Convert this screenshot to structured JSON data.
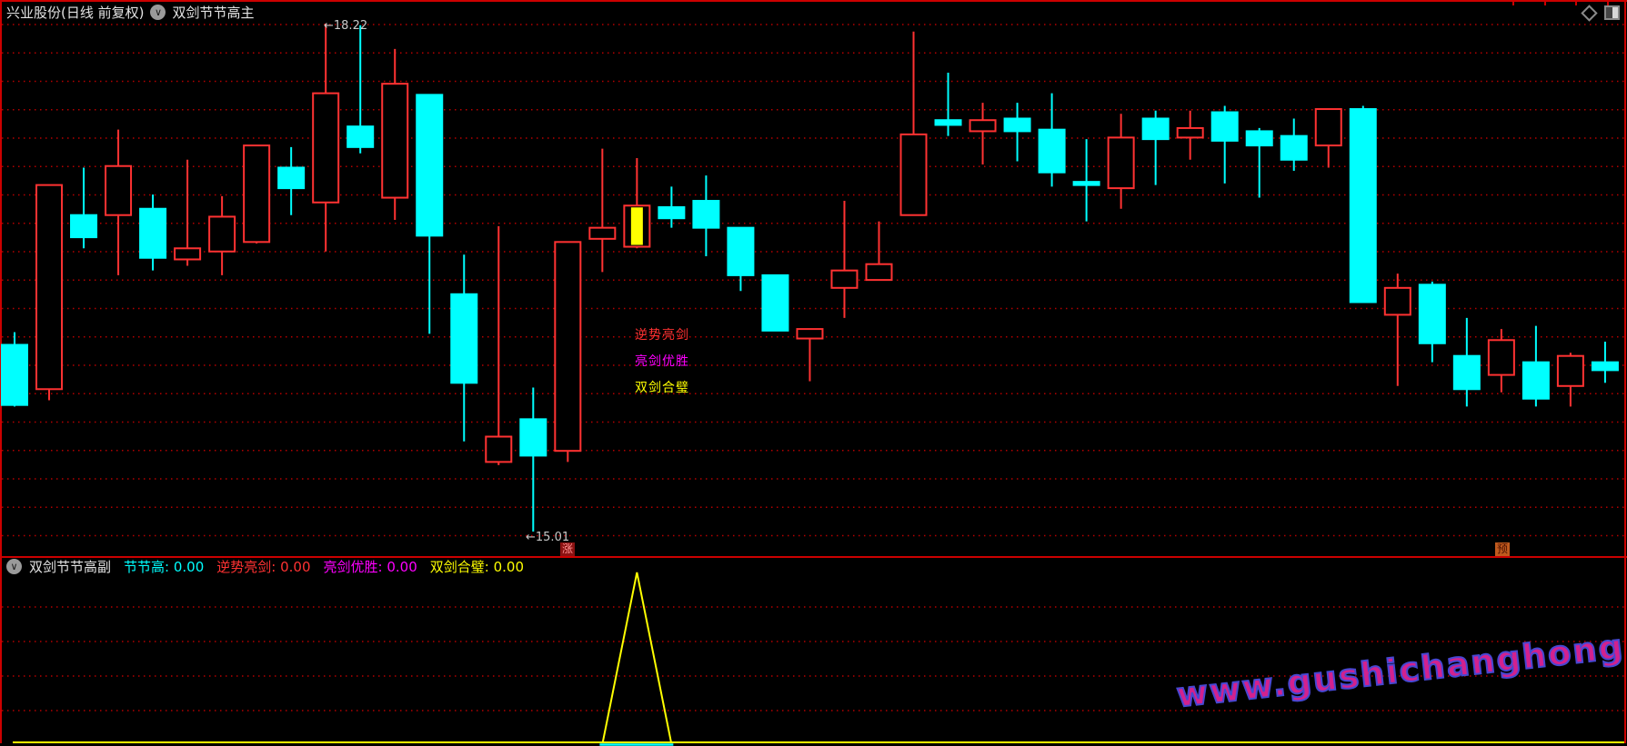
{
  "window": {
    "title_stock": "兴业股份(日线 前复权)",
    "title_main_indicator": "双剑节节高主",
    "chevron_glyph": "∨"
  },
  "main_chart": {
    "high_label": "←18.22",
    "low_label": "←15.01",
    "signal_labels": [
      {
        "text": "逆势亮剑",
        "color": "#ff3232"
      },
      {
        "text": "亮剑优胜",
        "color": "#ff00ff"
      },
      {
        "text": "双剑合璧",
        "color": "#ffff00"
      }
    ],
    "badges": [
      {
        "text": "涨",
        "color": "#ff8f8f",
        "bg": "#8b1212"
      },
      {
        "text": "预",
        "color": "#4a1000",
        "bg": "#c05a1e"
      }
    ]
  },
  "sub_chart": {
    "title": "双剑节节高副",
    "fields": [
      {
        "label": "节节高:",
        "value": "0.00",
        "color": "#00ffff"
      },
      {
        "label": "逆势亮剑:",
        "value": "0.00",
        "color": "#ff3232"
      },
      {
        "label": "亮剑优胜:",
        "value": "0.00",
        "color": "#ff00ff"
      },
      {
        "label": "双剑合璧:",
        "value": "0.00",
        "color": "#ffff00"
      }
    ]
  },
  "watermark": "www.gushichanghong.com",
  "colors": {
    "up": "#ff3232",
    "down": "#00ffff",
    "signal_fill": "#ffff00",
    "grid": "#b40000",
    "frame": "#cc0000",
    "text": "#e2e2e2",
    "label_gray": "#c8c8c8",
    "magenta": "#ff00ff",
    "yellow": "#ffff00",
    "watermark_fill": "#d2218e",
    "watermark_stroke": "#4747d2"
  },
  "chart_data": {
    "type": "candlestick",
    "title": "兴业股份(日线 前复权)",
    "y_axis": {
      "visible_high": 18.22,
      "visible_low": 15.01
    },
    "grid": "horizontal-dotted-red",
    "candles": [
      {
        "o": 16.19,
        "h": 16.27,
        "l": 15.8,
        "c": 15.81,
        "dir": "down"
      },
      {
        "o": 15.91,
        "h": 17.2,
        "l": 15.84,
        "c": 17.2,
        "dir": "up"
      },
      {
        "o": 17.01,
        "h": 17.31,
        "l": 16.8,
        "c": 16.87,
        "dir": "down"
      },
      {
        "o": 17.01,
        "h": 17.55,
        "l": 16.63,
        "c": 17.32,
        "dir": "up"
      },
      {
        "o": 17.05,
        "h": 17.14,
        "l": 16.66,
        "c": 16.74,
        "dir": "down"
      },
      {
        "o": 16.73,
        "h": 17.36,
        "l": 16.69,
        "c": 16.8,
        "dir": "up"
      },
      {
        "o": 16.78,
        "h": 17.13,
        "l": 16.63,
        "c": 17.0,
        "dir": "up"
      },
      {
        "o": 16.84,
        "h": 17.45,
        "l": 16.83,
        "c": 17.45,
        "dir": "up"
      },
      {
        "o": 17.31,
        "h": 17.44,
        "l": 17.01,
        "c": 17.18,
        "dir": "down"
      },
      {
        "o": 17.09,
        "h": 18.22,
        "l": 16.78,
        "c": 17.78,
        "dir": "up"
      },
      {
        "o": 17.57,
        "h": 18.21,
        "l": 17.4,
        "c": 17.44,
        "dir": "down"
      },
      {
        "o": 17.12,
        "h": 18.06,
        "l": 16.98,
        "c": 17.84,
        "dir": "up"
      },
      {
        "o": 17.77,
        "h": 17.77,
        "l": 16.26,
        "c": 16.88,
        "dir": "down"
      },
      {
        "o": 16.51,
        "h": 16.76,
        "l": 15.58,
        "c": 15.95,
        "dir": "down"
      },
      {
        "o": 15.45,
        "h": 16.94,
        "l": 15.43,
        "c": 15.61,
        "dir": "up"
      },
      {
        "o": 15.72,
        "h": 15.92,
        "l": 15.01,
        "c": 15.49,
        "dir": "down"
      },
      {
        "o": 15.52,
        "h": 16.84,
        "l": 15.45,
        "c": 16.84,
        "dir": "up"
      },
      {
        "o": 16.86,
        "h": 17.43,
        "l": 16.65,
        "c": 16.93,
        "dir": "up"
      },
      {
        "o": 16.81,
        "h": 17.37,
        "l": 16.8,
        "c": 17.07,
        "dir": "signal"
      },
      {
        "o": 17.06,
        "h": 17.19,
        "l": 16.93,
        "c": 16.99,
        "dir": "down"
      },
      {
        "o": 17.1,
        "h": 17.26,
        "l": 16.75,
        "c": 16.93,
        "dir": "down"
      },
      {
        "o": 16.93,
        "h": 16.93,
        "l": 16.53,
        "c": 16.63,
        "dir": "down"
      },
      {
        "o": 16.63,
        "h": 16.63,
        "l": 16.28,
        "c": 16.28,
        "dir": "down"
      },
      {
        "o": 16.23,
        "h": 16.29,
        "l": 15.96,
        "c": 16.29,
        "dir": "up"
      },
      {
        "o": 16.55,
        "h": 17.1,
        "l": 16.36,
        "c": 16.66,
        "dir": "up"
      },
      {
        "o": 16.6,
        "h": 16.97,
        "l": 16.6,
        "c": 16.7,
        "dir": "up"
      },
      {
        "o": 17.01,
        "h": 18.17,
        "l": 17.01,
        "c": 17.52,
        "dir": "up"
      },
      {
        "o": 17.61,
        "h": 17.91,
        "l": 17.51,
        "c": 17.58,
        "dir": "down"
      },
      {
        "o": 17.54,
        "h": 17.72,
        "l": 17.33,
        "c": 17.61,
        "dir": "up"
      },
      {
        "o": 17.62,
        "h": 17.72,
        "l": 17.35,
        "c": 17.54,
        "dir": "down"
      },
      {
        "o": 17.55,
        "h": 17.78,
        "l": 17.19,
        "c": 17.28,
        "dir": "down"
      },
      {
        "o": 17.22,
        "h": 17.49,
        "l": 16.97,
        "c": 17.2,
        "dir": "down"
      },
      {
        "o": 17.18,
        "h": 17.65,
        "l": 17.05,
        "c": 17.5,
        "dir": "up"
      },
      {
        "o": 17.62,
        "h": 17.67,
        "l": 17.2,
        "c": 17.49,
        "dir": "down"
      },
      {
        "o": 17.5,
        "h": 17.67,
        "l": 17.36,
        "c": 17.56,
        "dir": "up"
      },
      {
        "o": 17.66,
        "h": 17.7,
        "l": 17.21,
        "c": 17.48,
        "dir": "down"
      },
      {
        "o": 17.54,
        "h": 17.56,
        "l": 17.12,
        "c": 17.45,
        "dir": "down"
      },
      {
        "o": 17.51,
        "h": 17.62,
        "l": 17.29,
        "c": 17.36,
        "dir": "down"
      },
      {
        "o": 17.45,
        "h": 17.68,
        "l": 17.31,
        "c": 17.68,
        "dir": "up"
      },
      {
        "o": 17.68,
        "h": 17.7,
        "l": 16.46,
        "c": 16.46,
        "dir": "down"
      },
      {
        "o": 16.38,
        "h": 16.64,
        "l": 15.93,
        "c": 16.55,
        "dir": "up"
      },
      {
        "o": 16.57,
        "h": 16.59,
        "l": 16.08,
        "c": 16.2,
        "dir": "down"
      },
      {
        "o": 16.12,
        "h": 16.36,
        "l": 15.8,
        "c": 15.91,
        "dir": "down"
      },
      {
        "o": 16.0,
        "h": 16.29,
        "l": 15.89,
        "c": 16.22,
        "dir": "up"
      },
      {
        "o": 16.08,
        "h": 16.31,
        "l": 15.8,
        "c": 15.85,
        "dir": "down"
      },
      {
        "o": 15.93,
        "h": 16.14,
        "l": 15.8,
        "c": 16.12,
        "dir": "up"
      },
      {
        "o": 16.08,
        "h": 16.21,
        "l": 15.95,
        "c": 16.03,
        "dir": "down"
      }
    ],
    "sub_indicator": {
      "name": "双剑节节高副",
      "values": {
        "节节高": 0.0,
        "逆势亮剑": 0.0,
        "亮剑优胜": 0.0,
        "双剑合璧": 0.0
      },
      "spike": {
        "index": 18,
        "shape": "hollow-triangle",
        "color": "#ffff00"
      },
      "baseline_color": "#ffff00",
      "baseline_segment_color": "#00ffff"
    }
  }
}
